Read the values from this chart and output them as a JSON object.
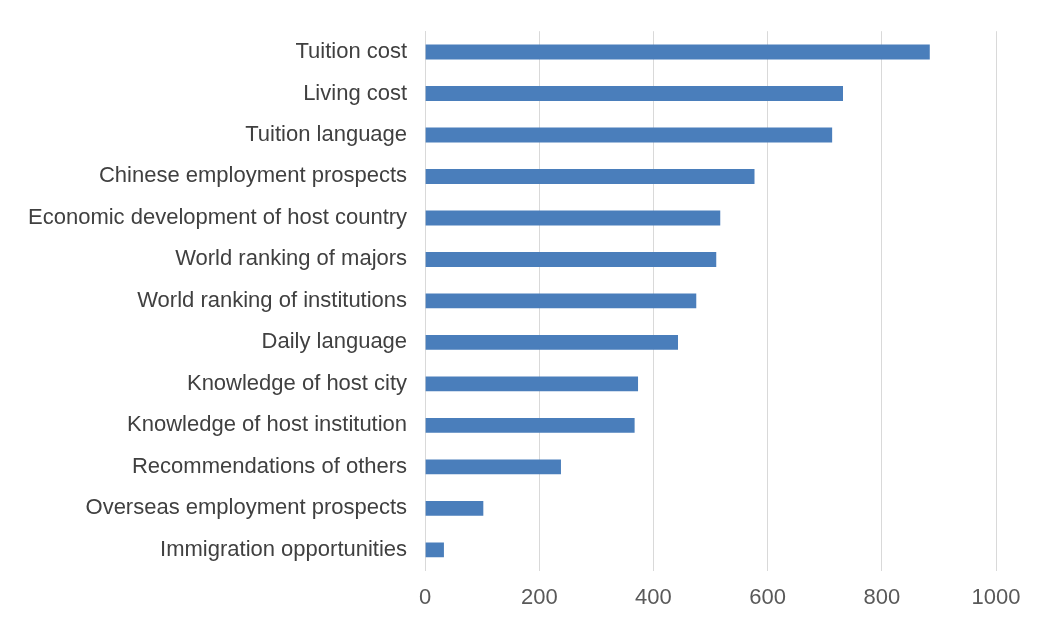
{
  "chart_data": {
    "type": "bar",
    "orientation": "horizontal",
    "categories": [
      "Tuition cost",
      "Living cost",
      "Tuition language",
      "Chinese employment prospects",
      "Economic development of host country",
      "World ranking of majors",
      "World ranking of institutions",
      "Daily language",
      "Knowledge of host city",
      "Knowledge of host institution",
      "Recommendations of others",
      "Overseas employment prospects",
      "Immigration opportunities"
    ],
    "values": [
      884,
      732,
      713,
      577,
      517,
      510,
      475,
      443,
      373,
      367,
      238,
      102,
      33
    ],
    "color": "#4a7ebb",
    "xlim": [
      0,
      1000
    ],
    "xticks": [
      0,
      200,
      400,
      600,
      800,
      1000
    ],
    "grid": "x"
  }
}
